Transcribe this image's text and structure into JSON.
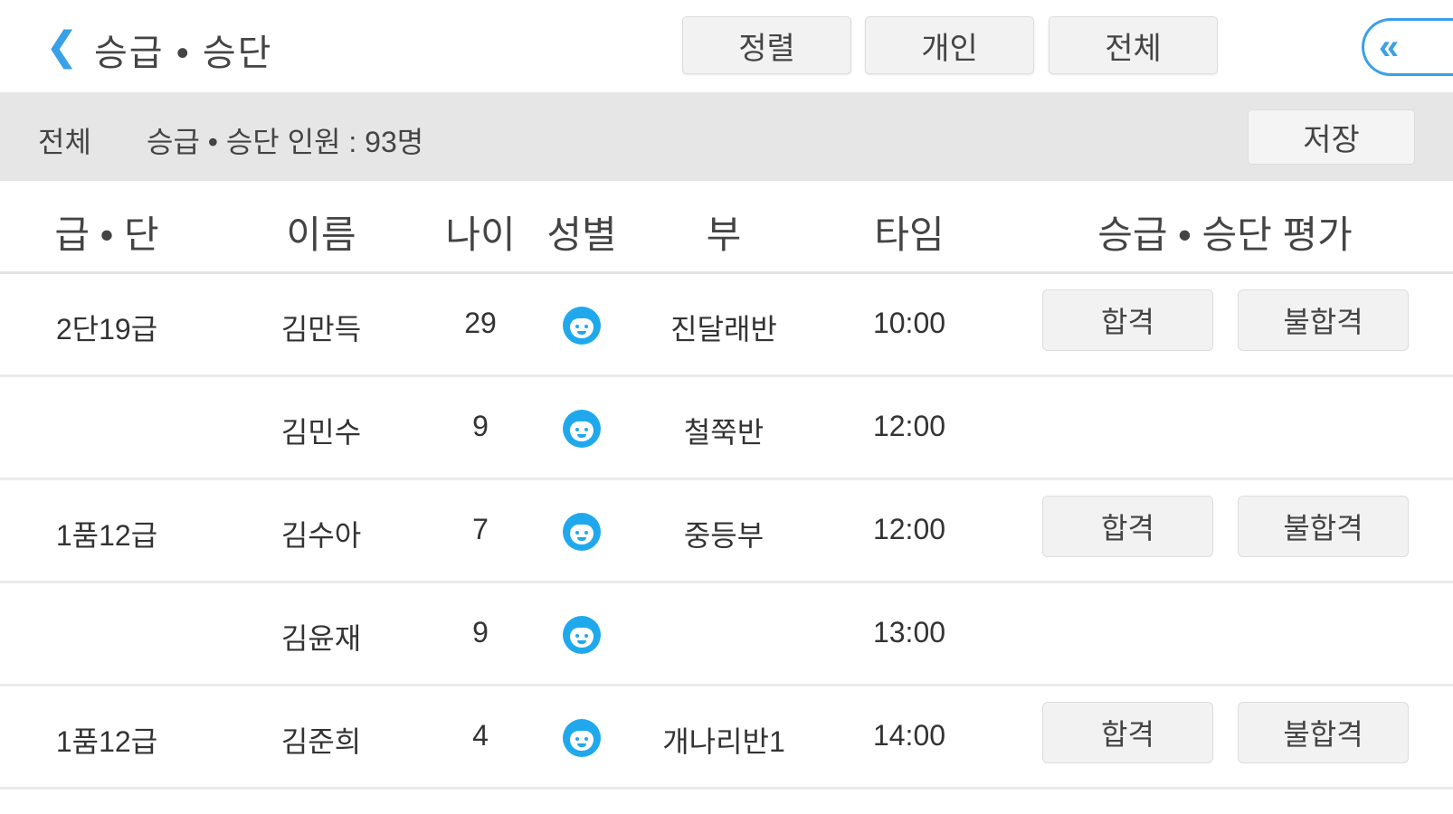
{
  "header": {
    "back_icon": "chevron-left-icon",
    "title": "승급 • 승단",
    "buttons": [
      "정렬",
      "개인",
      "전체"
    ],
    "collapse_icon": "double-chevron-left-icon",
    "accent": "#3aa0e8"
  },
  "summary": {
    "filter": "전체",
    "count": "승급 • 승단 인원 : 93명",
    "save": "저장"
  },
  "columns": [
    "급 • 단",
    "이름",
    "나이",
    "성별",
    "부",
    "타임",
    "승급 • 승단 평가"
  ],
  "rows": [
    {
      "grade": "2단19급",
      "name": "김만득",
      "age": "29",
      "gender_icon": "boy-face-icon",
      "class": "진달래반",
      "time": "10:00",
      "pass": "합격",
      "fail": "불합격"
    },
    {
      "grade": "",
      "name": "김민수",
      "age": "9",
      "gender_icon": "boy-face-icon",
      "class": "철쭉반",
      "time": "12:00"
    },
    {
      "grade": "1품12급",
      "name": "김수아",
      "age": "7",
      "gender_icon": "boy-face-icon",
      "class": "중등부",
      "time": "12:00",
      "pass": "합격",
      "fail": "불합격"
    },
    {
      "grade": "",
      "name": "김윤재",
      "age": "9",
      "gender_icon": "boy-face-icon",
      "class": "",
      "time": "13:00"
    },
    {
      "grade": "1품12급",
      "name": "김준희",
      "age": "4",
      "gender_icon": "boy-face-icon",
      "class": "개나리반1",
      "time": "14:00",
      "pass": "합격",
      "fail": "불합격"
    }
  ]
}
